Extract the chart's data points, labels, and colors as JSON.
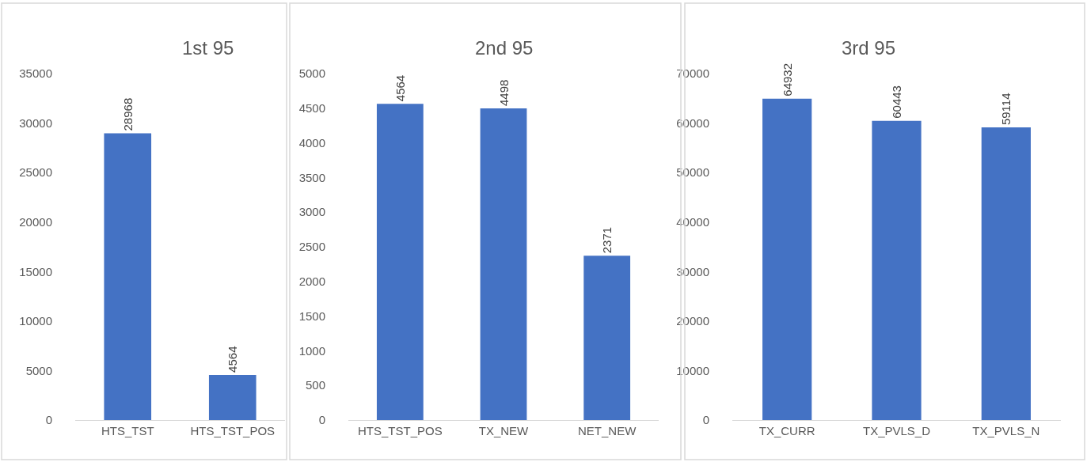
{
  "chart_data": [
    {
      "type": "bar",
      "title": "1st 95",
      "categories": [
        "HTS_TST",
        "HTS_TST_POS"
      ],
      "values": [
        28968,
        4564
      ],
      "color": "#4472c4",
      "ylim": [
        0,
        35000
      ],
      "yticks": [
        0,
        5000,
        10000,
        15000,
        20000,
        25000,
        30000,
        35000
      ],
      "data_labels": true,
      "grid": false
    },
    {
      "type": "bar",
      "title": "2nd 95",
      "categories": [
        "HTS_TST_POS",
        "TX_NEW",
        "NET_NEW"
      ],
      "values": [
        4564,
        4498,
        2371
      ],
      "color": "#4472c4",
      "ylim": [
        0,
        5000
      ],
      "yticks": [
        0,
        500,
        1000,
        1500,
        2000,
        2500,
        3000,
        3500,
        4000,
        4500,
        5000
      ],
      "data_labels": true,
      "grid": false
    },
    {
      "type": "bar",
      "title": "3rd 95",
      "categories": [
        "TX_CURR",
        "TX_PVLS_D",
        "TX_PVLS_N"
      ],
      "values": [
        64932,
        60443,
        59114
      ],
      "color": "#4472c4",
      "ylim": [
        0,
        70000
      ],
      "yticks": [
        0,
        10000,
        20000,
        30000,
        40000,
        50000,
        60000,
        70000
      ],
      "data_labels": true,
      "grid": false
    }
  ]
}
